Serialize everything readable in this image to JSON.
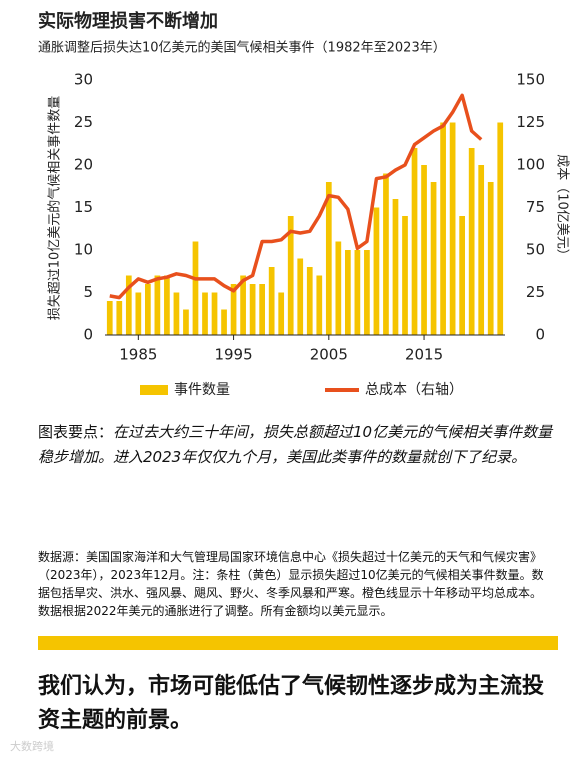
{
  "chart_data": {
    "type": "bar_line",
    "title": "实际物理损害不断增加",
    "subtitle": "通胀调整后损失达10亿美元的美国气候相关事件（1982年至2023年）",
    "y_label": "损失超过10亿美元的气候相关事件数量",
    "y2_label": "成本（10亿美元）",
    "x": [
      1982,
      1983,
      1984,
      1985,
      1986,
      1987,
      1988,
      1989,
      1990,
      1991,
      1992,
      1993,
      1994,
      1995,
      1996,
      1997,
      1998,
      1999,
      2000,
      2001,
      2002,
      2003,
      2004,
      2005,
      2006,
      2007,
      2008,
      2009,
      2010,
      2011,
      2012,
      2013,
      2014,
      2015,
      2016,
      2017,
      2018,
      2019,
      2020,
      2021,
      2022,
      2023
    ],
    "series": [
      {
        "name": "事件数量",
        "color": "#f5c400",
        "kind": "bar",
        "values": [
          4,
          4,
          7,
          5,
          6,
          7,
          7,
          5,
          3,
          11,
          5,
          5,
          3,
          6,
          7,
          6,
          6,
          8,
          5,
          14,
          9,
          8,
          7,
          18,
          11,
          10,
          10,
          10,
          15,
          19,
          16,
          14,
          22,
          20,
          18,
          25,
          25,
          14,
          22,
          20,
          18,
          25
        ]
      },
      {
        "name": "总成本（右轴）",
        "color": "#e8501d",
        "kind": "line",
        "axis": "y2",
        "values": [
          23,
          22,
          28,
          33,
          31,
          33,
          34,
          36,
          35,
          33,
          33,
          33,
          29,
          26,
          32,
          35,
          55,
          55,
          56,
          61,
          60,
          61,
          70,
          82,
          81,
          74,
          51,
          55,
          92,
          93,
          97,
          100,
          112,
          116,
          120,
          123,
          131,
          141,
          120,
          115,
          null,
          null
        ]
      }
    ],
    "xlim": [
      1981.5,
      2023.5
    ],
    "xticks": [
      1985,
      1995,
      2005,
      2015
    ],
    "ylim": [
      0,
      30
    ],
    "yticks": [
      0,
      5,
      10,
      15,
      20,
      25,
      30
    ],
    "y2lim": [
      0,
      150
    ],
    "y2ticks": [
      0,
      25,
      50,
      75,
      100,
      125,
      150
    ]
  },
  "keypoint": {
    "label": "图表要点：",
    "text": "在过去大约三十年间，损失总额超过10亿美元的气候相关事件数量稳步增加。进入2023年仅仅九个月，美国此类事件的数量就创下了纪录。"
  },
  "source": "数据源：美国国家海洋和大气管理局国家环境信息中心《损失超过十亿美元的天气和气候灾害》（2023年），2023年12月。注：条柱（黄色）显示损失超过10亿美元的气候相关事件数量。数据包括旱灾、洪水、强风暴、飓风、野火、冬季风暴和严寒。橙色线显示十年移动平均总成本。数据根据2022年美元的通胀进行了调整。所有金额均以美元显示。",
  "conclusion": "我们认为，市场可能低估了气候韧性逐步成为主流投资主题的前景。",
  "watermark": "大数跨境"
}
